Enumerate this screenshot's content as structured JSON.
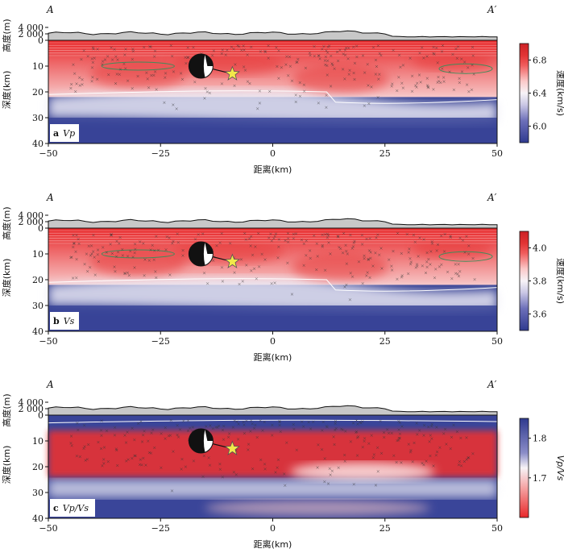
{
  "chart_data": [
    {
      "type": "heatmap",
      "panel": "a",
      "panel_label": "Vp",
      "profile_start": "A",
      "profile_end": "A′",
      "xlabel": "距离(km)",
      "ylabel_top": "高度(m)",
      "ylabel_bottom": "深度(km)",
      "xlim": [
        -50,
        50
      ],
      "ylim_depth": [
        0,
        40
      ],
      "elev_ticks": [
        "4 000",
        "2 000",
        "0"
      ],
      "x_ticks": [
        "−50",
        "−25",
        "0",
        "25",
        "50"
      ],
      "depth_ticks": [
        "0",
        "10",
        "20",
        "30",
        "40"
      ],
      "colorbar_label": "速度(km/s)",
      "colorbar_range": [
        5.8,
        7.0
      ],
      "colorbar_ticks": [
        "6.8",
        "6.4",
        "6.0"
      ],
      "colorbar_tick_values": [
        6.8,
        6.4,
        6.0
      ]
    },
    {
      "type": "heatmap",
      "panel": "b",
      "panel_label": "Vs",
      "profile_start": "A",
      "profile_end": "A′",
      "xlabel": "距离(km)",
      "ylabel_top": "高度(m)",
      "ylabel_bottom": "深度(km)",
      "xlim": [
        -50,
        50
      ],
      "ylim_depth": [
        0,
        40
      ],
      "elev_ticks": [
        "4 000",
        "2 000",
        "0"
      ],
      "x_ticks": [
        "−50",
        "−25",
        "0",
        "25",
        "50"
      ],
      "depth_ticks": [
        "0",
        "10",
        "20",
        "30",
        "40"
      ],
      "colorbar_label": "速度(km/s)",
      "colorbar_range": [
        3.5,
        4.1
      ],
      "colorbar_ticks": [
        "4.0",
        "3.8",
        "3.6"
      ],
      "colorbar_tick_values": [
        4.0,
        3.8,
        3.6
      ]
    },
    {
      "type": "heatmap",
      "panel": "c",
      "panel_label": "Vp/Vs",
      "profile_start": "A",
      "profile_end": "A′",
      "xlabel": "距离(km)",
      "ylabel_top": "高度(m)",
      "ylabel_bottom": "深度(km)",
      "xlim": [
        -50,
        50
      ],
      "ylim_depth": [
        0,
        40
      ],
      "elev_ticks": [
        "4 000",
        "2 000",
        "0"
      ],
      "x_ticks": [
        "−50",
        "−25",
        "0",
        "25",
        "50"
      ],
      "depth_ticks": [
        "0",
        "10",
        "20",
        "30",
        "40"
      ],
      "colorbar_label": "Vp/Vs",
      "colorbar_range": [
        1.6,
        1.85
      ],
      "colorbar_ticks": [
        "1.8",
        "1.7"
      ],
      "colorbar_tick_values": [
        1.8,
        1.7
      ]
    }
  ],
  "mainshock": {
    "x_km": -9,
    "depth_km": 13
  },
  "colors": {
    "low": "#e8282a",
    "mid": "#ffffff",
    "high": "#2f3a8f",
    "topo": "#c8c8c8",
    "star": "#f2e84a"
  }
}
